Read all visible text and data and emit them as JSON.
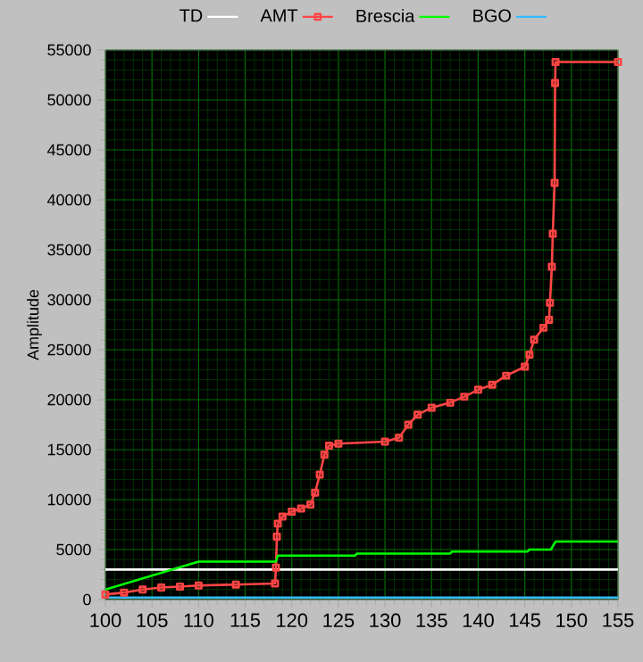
{
  "chart_data": {
    "type": "line",
    "ylabel": "Amplitude",
    "xlim": [
      100,
      155
    ],
    "ylim": [
      0,
      55000
    ],
    "xticks": [
      100,
      {
        "value": 101,
        "label": null
      },
      {
        "value": 102,
        "label": null
      },
      {
        "value": 103,
        "label": null
      },
      {
        "value": 104,
        "label": null
      },
      105,
      {
        "value": 106,
        "label": null
      },
      {
        "value": 107,
        "label": null
      },
      {
        "value": 108,
        "label": null
      },
      {
        "value": 109,
        "label": null
      },
      110,
      {
        "value": 111,
        "label": null
      },
      {
        "value": 112,
        "label": null
      },
      {
        "value": 113,
        "label": null
      },
      {
        "value": 114,
        "label": null
      },
      115,
      {
        "value": 116,
        "label": null
      },
      {
        "value": 117,
        "label": null
      },
      {
        "value": 118,
        "label": null
      },
      {
        "value": 119,
        "label": null
      },
      120,
      {
        "value": 121,
        "label": null
      },
      {
        "value": 122,
        "label": null
      },
      {
        "value": 123,
        "label": null
      },
      {
        "value": 124,
        "label": null
      },
      125,
      {
        "value": 126,
        "label": null
      },
      {
        "value": 127,
        "label": null
      },
      {
        "value": 128,
        "label": null
      },
      {
        "value": 129,
        "label": null
      },
      130,
      {
        "value": 131,
        "label": null
      },
      {
        "value": 132,
        "label": null
      },
      {
        "value": 133,
        "label": null
      },
      {
        "value": 134,
        "label": null
      },
      135,
      {
        "value": 136,
        "label": null
      },
      {
        "value": 137,
        "label": null
      },
      {
        "value": 138,
        "label": null
      },
      {
        "value": 139,
        "label": null
      },
      140,
      {
        "value": 141,
        "label": null
      },
      {
        "value": 142,
        "label": null
      },
      {
        "value": 143,
        "label": null
      },
      {
        "value": 144,
        "label": null
      },
      145,
      {
        "value": 146,
        "label": null
      },
      {
        "value": 147,
        "label": null
      },
      {
        "value": 148,
        "label": null
      },
      {
        "value": 149,
        "label": null
      },
      150,
      {
        "value": 151,
        "label": null
      },
      {
        "value": 152,
        "label": null
      },
      {
        "value": 153,
        "label": null
      },
      {
        "value": 154,
        "label": null
      },
      155
    ],
    "yticks": [
      0,
      {
        "value": 1000,
        "label": null
      },
      {
        "value": 2000,
        "label": null
      },
      {
        "value": 3000,
        "label": null
      },
      {
        "value": 4000,
        "label": null
      },
      5000,
      {
        "value": 6000,
        "label": null
      },
      {
        "value": 7000,
        "label": null
      },
      {
        "value": 8000,
        "label": null
      },
      {
        "value": 9000,
        "label": null
      },
      10000,
      {
        "value": 11000,
        "label": null
      },
      {
        "value": 12000,
        "label": null
      },
      {
        "value": 13000,
        "label": null
      },
      {
        "value": 14000,
        "label": null
      },
      15000,
      {
        "value": 16000,
        "label": null
      },
      {
        "value": 17000,
        "label": null
      },
      {
        "value": 18000,
        "label": null
      },
      {
        "value": 19000,
        "label": null
      },
      20000,
      {
        "value": 21000,
        "label": null
      },
      {
        "value": 22000,
        "label": null
      },
      {
        "value": 23000,
        "label": null
      },
      {
        "value": 24000,
        "label": null
      },
      25000,
      {
        "value": 26000,
        "label": null
      },
      {
        "value": 27000,
        "label": null
      },
      {
        "value": 28000,
        "label": null
      },
      {
        "value": 29000,
        "label": null
      },
      30000,
      {
        "value": 31000,
        "label": null
      },
      {
        "value": 32000,
        "label": null
      },
      {
        "value": 33000,
        "label": null
      },
      {
        "value": 34000,
        "label": null
      },
      35000,
      {
        "value": 36000,
        "label": null
      },
      {
        "value": 37000,
        "label": null
      },
      {
        "value": 38000,
        "label": null
      },
      {
        "value": 39000,
        "label": null
      },
      40000,
      {
        "value": 41000,
        "label": null
      },
      {
        "value": 42000,
        "label": null
      },
      {
        "value": 43000,
        "label": null
      },
      {
        "value": 44000,
        "label": null
      },
      45000,
      {
        "value": 46000,
        "label": null
      },
      {
        "value": 47000,
        "label": null
      },
      {
        "value": 48000,
        "label": null
      },
      {
        "value": 49000,
        "label": null
      },
      50000,
      {
        "value": 51000,
        "label": null
      },
      {
        "value": 52000,
        "label": null
      },
      {
        "value": 53000,
        "label": null
      },
      {
        "value": 54000,
        "label": null
      },
      55000
    ],
    "grid": true,
    "legend": "top",
    "series": [
      {
        "name": "TD",
        "color": "#ffffff",
        "marker": "none",
        "x": [
          100,
          155
        ],
        "values": [
          3000,
          3000
        ]
      },
      {
        "name": "AMT",
        "color": "#ff4545",
        "marker": "square",
        "x": [
          100,
          102,
          104,
          106,
          108,
          110,
          114,
          118.2,
          118.3,
          118.4,
          118.5,
          119,
          120,
          121,
          122,
          122.5,
          123,
          123.5,
          124,
          125,
          130,
          131.5,
          132.5,
          133.5,
          135,
          137,
          138.5,
          140,
          141.5,
          143,
          145,
          145.5,
          146,
          147,
          147.6,
          147.7,
          147.9,
          148,
          148.2,
          148.25,
          148.3,
          155
        ],
        "values": [
          500,
          700,
          1000,
          1200,
          1300,
          1400,
          1500,
          1600,
          3200,
          6300,
          7600,
          8300,
          8800,
          9100,
          9500,
          10700,
          12500,
          14500,
          15400,
          15600,
          15800,
          16200,
          17500,
          18500,
          19200,
          19700,
          20300,
          21000,
          21500,
          22400,
          23300,
          24500,
          26000,
          27200,
          28000,
          29700,
          33300,
          36600,
          41700,
          51700,
          53800,
          53800
        ]
      },
      {
        "name": "Brescia",
        "color": "#00ff00",
        "marker": "none",
        "x": [
          100,
          110,
          118.3,
          118.5,
          126.8,
          127,
          137,
          137.2,
          145.3,
          145.5,
          147.8,
          148.3,
          155
        ],
        "values": [
          1000,
          3800,
          3800,
          4400,
          4400,
          4600,
          4600,
          4800,
          4800,
          5000,
          5000,
          5800,
          5800
        ]
      },
      {
        "name": "BGO",
        "color": "#33bbff",
        "marker": "none",
        "x": [
          100,
          155
        ],
        "values": [
          200,
          200
        ]
      }
    ]
  }
}
